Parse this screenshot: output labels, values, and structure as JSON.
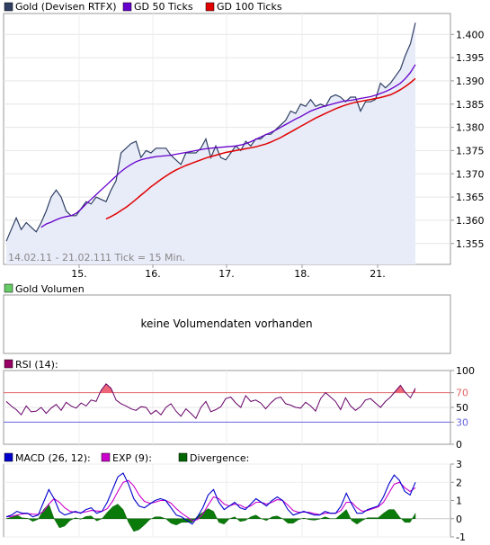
{
  "main_chart": {
    "legend": [
      {
        "label": "Gold (Devisen RTFX)",
        "color": "#2e3f62"
      },
      {
        "label": "GD 50 Ticks",
        "color": "#6600cc"
      },
      {
        "label": "GD 100 Ticks",
        "color": "#e00000"
      }
    ],
    "range_label": "14.02.11 - 21.02.11",
    "tick_label": "1 Tick = 15 Min.",
    "x_labels": [
      "15.",
      "16.",
      "17.",
      "18.",
      "21."
    ]
  },
  "volume_panel": {
    "legend": "Gold Volumen",
    "legend_color": "#66cc66",
    "message": "keine Volumendaten vorhanden"
  },
  "rsi_panel": {
    "legend": "RSI (14):",
    "legend_color": "#990066"
  },
  "macd_panel": {
    "legend": [
      {
        "label": "MACD (26, 12):",
        "color": "#0000cc"
      },
      {
        "label": "EXP (9):",
        "color": "#cc00cc"
      },
      {
        "label": "Divergence:",
        "color": "#006600"
      }
    ]
  },
  "chart_data": [
    {
      "type": "line",
      "name": "price",
      "ylim": [
        1.3505,
        1.4045
      ],
      "y_ticks": [
        "1.400",
        "1.395",
        "1.390",
        "1.385",
        "1.380",
        "1.375",
        "1.370",
        "1.365",
        "1.360",
        "1.355"
      ],
      "series": [
        {
          "name": "Gold (Devisen RTFX)",
          "color": "#2e3f62",
          "values": [
            1.3555,
            1.358,
            1.3605,
            1.358,
            1.3595,
            1.3585,
            1.3575,
            1.3595,
            1.362,
            1.365,
            1.3665,
            1.365,
            1.362,
            1.361,
            1.361,
            1.3625,
            1.364,
            1.3635,
            1.365,
            1.3645,
            1.364,
            1.3665,
            1.3685,
            1.3745,
            1.3755,
            1.3765,
            1.377,
            1.3735,
            1.375,
            1.3745,
            1.3755,
            1.3755,
            1.3755,
            1.374,
            1.373,
            1.372,
            1.3745,
            1.3745,
            1.3745,
            1.3755,
            1.3775,
            1.3735,
            1.376,
            1.3735,
            1.373,
            1.3745,
            1.376,
            1.375,
            1.377,
            1.376,
            1.3775,
            1.3775,
            1.3785,
            1.3785,
            1.3795,
            1.3805,
            1.3815,
            1.3835,
            1.383,
            1.385,
            1.3845,
            1.386,
            1.3845,
            1.385,
            1.3845,
            1.3865,
            1.387,
            1.3865,
            1.3855,
            1.3865,
            1.3865,
            1.3835,
            1.3855,
            1.3855,
            1.386,
            1.3895,
            1.3885,
            1.3895,
            1.391,
            1.3925,
            1.3955,
            1.398,
            1.4025
          ]
        },
        {
          "name": "GD 50 Ticks",
          "color": "#6600cc",
          "values": [
            null,
            null,
            null,
            null,
            null,
            null,
            null,
            1.3585,
            1.3592,
            1.3596,
            1.3601,
            1.3605,
            1.3608,
            1.361,
            1.3615,
            1.3624,
            1.3635,
            1.3645,
            1.3655,
            1.3665,
            1.3675,
            1.3685,
            1.3695,
            1.3705,
            1.3713,
            1.372,
            1.3726,
            1.373,
            1.3733,
            1.3735,
            1.3737,
            1.3738,
            1.3739,
            1.374,
            1.3742,
            1.3744,
            1.3746,
            1.3748,
            1.375,
            1.3752,
            1.3754,
            1.3755,
            1.3756,
            1.3757,
            1.3758,
            1.3759,
            1.376,
            1.3762,
            1.3765,
            1.3769,
            1.3774,
            1.3779,
            1.3784,
            1.3789,
            1.3794,
            1.38,
            1.3806,
            1.3812,
            1.3818,
            1.3823,
            1.3829,
            1.3835,
            1.3839,
            1.3843,
            1.3846,
            1.3849,
            1.3852,
            1.3855,
            1.3857,
            1.3858,
            1.386,
            1.3862,
            1.3864,
            1.3866,
            1.3869,
            1.3873,
            1.3877,
            1.3882,
            1.3888,
            1.3895,
            1.3905,
            1.3918,
            1.3935
          ]
        },
        {
          "name": "GD 100 Ticks",
          "color": "#e00000",
          "values": [
            null,
            null,
            null,
            null,
            null,
            null,
            null,
            null,
            null,
            null,
            null,
            null,
            null,
            null,
            null,
            null,
            null,
            null,
            null,
            null,
            1.3603,
            1.3608,
            1.3614,
            1.3621,
            1.3628,
            1.3636,
            1.3645,
            1.3654,
            1.3663,
            1.3672,
            1.368,
            1.3688,
            1.3695,
            1.3702,
            1.3708,
            1.3713,
            1.3718,
            1.3722,
            1.3726,
            1.373,
            1.3734,
            1.3737,
            1.374,
            1.3743,
            1.3746,
            1.3748,
            1.375,
            1.3752,
            1.3754,
            1.3756,
            1.3758,
            1.3761,
            1.3764,
            1.3768,
            1.3773,
            1.3778,
            1.3784,
            1.379,
            1.3796,
            1.3802,
            1.3808,
            1.3814,
            1.382,
            1.3825,
            1.383,
            1.3835,
            1.384,
            1.3844,
            1.3848,
            1.3851,
            1.3854,
            1.3856,
            1.3858,
            1.386,
            1.3862,
            1.3864,
            1.3867,
            1.387,
            1.3875,
            1.3881,
            1.3888,
            1.3896,
            1.3905
          ]
        }
      ]
    },
    {
      "type": "line",
      "name": "rsi",
      "ylim": [
        0,
        100
      ],
      "y_ticks": [
        "100",
        "70",
        "50",
        "30",
        "0"
      ],
      "levels": [
        70,
        30
      ],
      "series": [
        {
          "name": "RSI (14)",
          "color": "#660066",
          "values": [
            58,
            52,
            47,
            40,
            52,
            44,
            45,
            50,
            42,
            49,
            54,
            46,
            57,
            52,
            49,
            56,
            52,
            60,
            58,
            73,
            82,
            76,
            60,
            55,
            52,
            48,
            46,
            51,
            50,
            41,
            46,
            40,
            50,
            55,
            45,
            38,
            48,
            42,
            35,
            50,
            58,
            44,
            47,
            51,
            62,
            64,
            56,
            50,
            66,
            58,
            60,
            56,
            48,
            56,
            62,
            64,
            55,
            53,
            50,
            49,
            57,
            52,
            45,
            62,
            70,
            64,
            58,
            47,
            63,
            52,
            46,
            51,
            60,
            62,
            56,
            50,
            58,
            64,
            72,
            80,
            70,
            63,
            76
          ]
        }
      ]
    },
    {
      "type": "line",
      "name": "macd",
      "ylim": [
        -1,
        3
      ],
      "y_ticks": [
        "3",
        "2",
        "1",
        "0",
        "-1"
      ],
      "series": [
        {
          "name": "MACD (26, 12)",
          "color": "#0000cc",
          "values": [
            0.1,
            0.2,
            0.4,
            0.3,
            0.3,
            0.1,
            0.2,
            0.9,
            1.6,
            1.1,
            0.4,
            0.2,
            0.3,
            0.4,
            0.3,
            0.5,
            0.6,
            0.3,
            0.4,
            0.9,
            1.6,
            2.3,
            2.5,
            1.9,
            1.1,
            0.7,
            0.6,
            0.8,
            1.0,
            1.1,
            1.0,
            0.6,
            0.2,
            0.1,
            -0.1,
            -0.3,
            0.1,
            0.6,
            1.3,
            1.6,
            0.9,
            0.5,
            0.7,
            0.9,
            0.6,
            0.5,
            0.8,
            1.1,
            0.9,
            0.7,
            1.0,
            1.2,
            1.0,
            0.5,
            0.2,
            0.3,
            0.4,
            0.3,
            0.2,
            0.2,
            0.4,
            0.3,
            0.3,
            0.7,
            1.4,
            0.8,
            0.3,
            0.3,
            0.5,
            0.6,
            0.7,
            1.2,
            1.9,
            2.4,
            2.1,
            1.5,
            1.3,
            2.0
          ]
        },
        {
          "name": "EXP (9)",
          "color": "#cc00cc",
          "values": [
            0.1,
            0.12,
            0.2,
            0.26,
            0.28,
            0.25,
            0.23,
            0.4,
            0.8,
            1.1,
            0.9,
            0.6,
            0.4,
            0.35,
            0.33,
            0.38,
            0.45,
            0.42,
            0.4,
            0.55,
            0.95,
            1.5,
            2.0,
            2.1,
            1.8,
            1.3,
            0.95,
            0.85,
            0.9,
            1.0,
            1.0,
            0.85,
            0.55,
            0.3,
            0.1,
            -0.1,
            -0.05,
            0.25,
            0.75,
            1.2,
            1.1,
            0.8,
            0.7,
            0.8,
            0.75,
            0.6,
            0.7,
            0.9,
            0.9,
            0.8,
            0.9,
            1.05,
            1.0,
            0.75,
            0.45,
            0.35,
            0.37,
            0.35,
            0.28,
            0.22,
            0.3,
            0.3,
            0.3,
            0.45,
            0.9,
            0.9,
            0.6,
            0.4,
            0.45,
            0.55,
            0.65,
            0.9,
            1.4,
            1.9,
            2.0,
            1.7,
            1.5,
            1.7
          ]
        }
      ]
    }
  ]
}
